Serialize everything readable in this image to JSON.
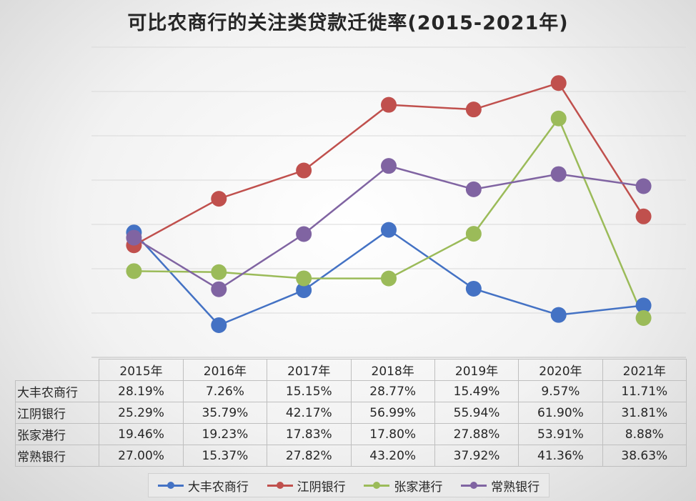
{
  "chart_data": {
    "type": "line",
    "title": "可比农商行的关注类贷款迁徙率(2015-2021年)",
    "categories": [
      "2015年",
      "2016年",
      "2017年",
      "2018年",
      "2019年",
      "2020年",
      "2021年"
    ],
    "series": [
      {
        "name": "大丰农商行",
        "color": "#4472C4",
        "values": [
          28.19,
          7.26,
          15.15,
          28.77,
          15.49,
          9.57,
          11.71
        ],
        "labels": [
          "28.19%",
          "7.26%",
          "15.15%",
          "28.77%",
          "15.49%",
          "9.57%",
          "11.71%"
        ]
      },
      {
        "name": "江阴银行",
        "color": "#C0504D",
        "values": [
          25.29,
          35.79,
          42.17,
          56.99,
          55.94,
          61.9,
          31.81
        ],
        "labels": [
          "25.29%",
          "35.79%",
          "42.17%",
          "56.99%",
          "55.94%",
          "61.90%",
          "31.81%"
        ]
      },
      {
        "name": "张家港行",
        "color": "#9BBB59",
        "values": [
          19.46,
          19.23,
          17.83,
          17.8,
          27.88,
          53.91,
          8.88
        ],
        "labels": [
          "19.46%",
          "19.23%",
          "17.83%",
          "17.80%",
          "27.88%",
          "53.91%",
          "8.88%"
        ]
      },
      {
        "name": "常熟银行",
        "color": "#8064A2",
        "values": [
          27.0,
          15.37,
          27.82,
          43.2,
          37.92,
          41.36,
          38.63
        ],
        "labels": [
          "27.00%",
          "15.37%",
          "27.82%",
          "43.20%",
          "37.92%",
          "41.36%",
          "38.63%"
        ]
      }
    ],
    "ylim": [
      0,
      70
    ],
    "grid": true,
    "legend_position": "bottom",
    "data_table": true
  }
}
